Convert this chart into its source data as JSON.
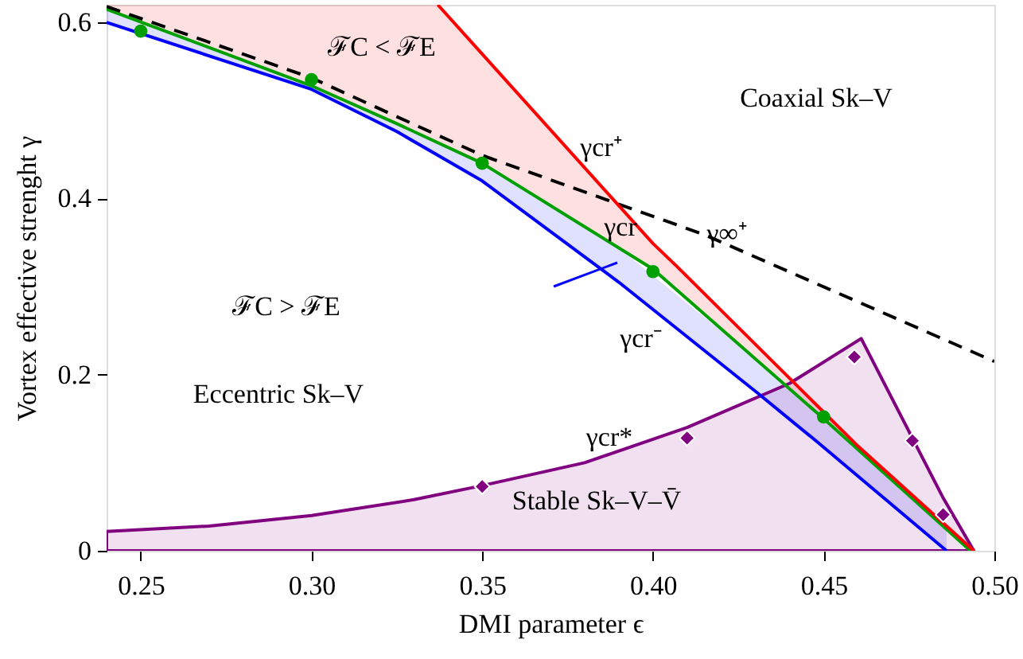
{
  "chart_data": {
    "type": "line",
    "xlabel": "DMI parameter ϵ",
    "ylabel": "Vortex effective strenght γ",
    "xlim": [
      0.24,
      0.5
    ],
    "ylim": [
      0,
      0.62
    ],
    "xticks": [
      0.25,
      {
        "value": 0.3,
        "label": "0.30"
      },
      0.35,
      {
        "value": 0.4,
        "label": "0.40"
      },
      0.45,
      {
        "value": 0.5,
        "label": "0.50"
      }
    ],
    "yticks": [
      0,
      {
        "value": 0.2,
        "label": "0.2"
      },
      {
        "value": 0.4,
        "label": "0.4"
      },
      {
        "value": 0.6,
        "label": "0.6"
      }
    ],
    "grid": false,
    "series": [
      {
        "type": "area",
        "color": "#800080",
        "x": [
          0.24,
          0.27,
          0.3,
          0.33,
          0.35,
          0.38,
          0.41,
          0.44,
          0.461,
          0.485,
          0.494
        ],
        "values": [
          0.022,
          0.028,
          0.04,
          0.058,
          0.074,
          0.1,
          0.14,
          0.19,
          0.241,
          0.06,
          0
        ]
      },
      {
        "color": "#00a000",
        "x": [
          0.24,
          0.3,
          0.325,
          0.35,
          0.4,
          0.45,
          0.493
        ],
        "values": [
          0.615,
          0.528,
          0.485,
          0.44,
          0.32,
          0.15,
          0
        ]
      },
      {
        "color": "#000000",
        "line_style": "dashed",
        "x": [
          0.24,
          0.3,
          0.35,
          0.415,
          0.5
        ],
        "values": [
          0.618,
          0.537,
          0.449,
          0.359,
          0.215
        ]
      },
      {
        "color": "#ff0000",
        "x": [
          0.24,
          0.3,
          0.325,
          0.337,
          0.35,
          0.4,
          0.407,
          0.46,
          0.494
        ],
        "values": [
          null,
          null,
          null,
          0.62,
          0.564,
          0.349,
          0.323,
          0.119,
          0
        ],
        "lower": [
          0.615,
          0.528,
          0.485,
          0.464,
          0.44,
          0.32,
          0.296,
          0.115,
          0
        ],
        "upper": [
          0.62,
          0.62,
          0.62,
          0.62,
          0.564,
          0.349,
          0.323,
          0.119,
          0
        ]
      },
      {
        "color": "#0000ff",
        "x": [
          0.24,
          0.3,
          0.325,
          0.35,
          0.39,
          0.431,
          0.448,
          0.486
        ],
        "values": [
          0.6,
          0.524,
          0.476,
          0.42,
          0.305,
          0.178,
          0.124,
          0
        ],
        "lower": [
          0.6,
          0.524,
          0.476,
          0.42,
          0.305,
          0.178,
          0.124,
          0
        ],
        "upper": [
          0.615,
          0.528,
          0.485,
          0.44,
          0.344,
          0.215,
          0.158,
          0.024
        ]
      },
      {
        "type": "scatter",
        "color": "#00a000",
        "marker": "circle",
        "x": [
          0.25,
          0.3,
          0.35,
          0.4,
          0.45
        ],
        "values": [
          0.59,
          0.535,
          0.44,
          0.317,
          0.152
        ]
      },
      {
        "type": "scatter",
        "color": "#800080",
        "marker": "diamond",
        "x": [
          0.35,
          0.41,
          0.459,
          0.476,
          0.485
        ],
        "values": [
          0.073,
          0.128,
          0.22,
          0.125,
          0.041
        ]
      }
    ],
    "annotations": [
      "ℱC < ℱE",
      "Coaxial Sk–V",
      "γcr⁺",
      "γcr",
      "γ∞⁺",
      "ℱC > ℱE",
      "γcr⁻",
      "Eccentric Sk–V",
      "γcr*",
      "Stable Sk–V–V̄"
    ]
  }
}
